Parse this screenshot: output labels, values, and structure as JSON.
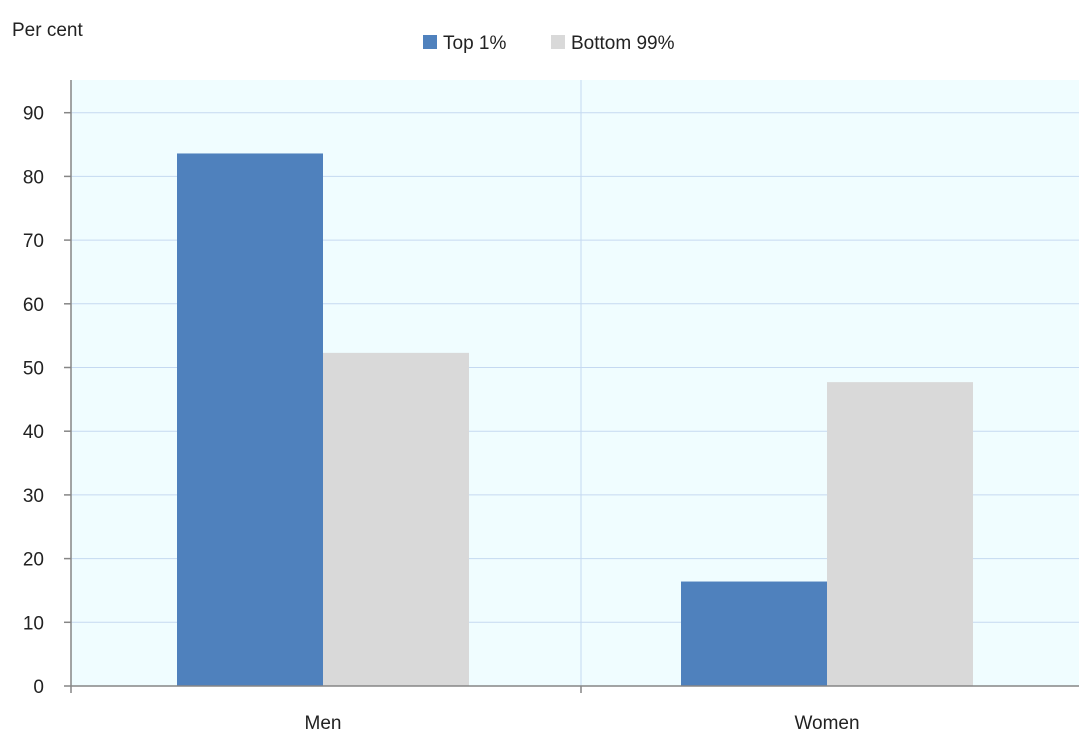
{
  "chart_data": {
    "type": "bar",
    "title": "",
    "ylabel": "Per cent",
    "xlabel": "",
    "categories": [
      "Men",
      "Women"
    ],
    "series": [
      {
        "name": "Top 1%",
        "values": [
          83.6,
          16.4
        ],
        "color": "#4f81bd"
      },
      {
        "name": "Bottom 99%",
        "values": [
          52.3,
          47.7
        ],
        "color": "#d9d9d9"
      }
    ],
    "ylim": [
      0,
      90
    ],
    "yticks": [
      "0",
      "10",
      "20",
      "30",
      "40",
      "50",
      "60",
      "70",
      "80",
      "90"
    ],
    "grid": true,
    "legend_position": "top-center",
    "plot_background": "#f0fdff",
    "gridline_color": "#c5d9f1"
  }
}
